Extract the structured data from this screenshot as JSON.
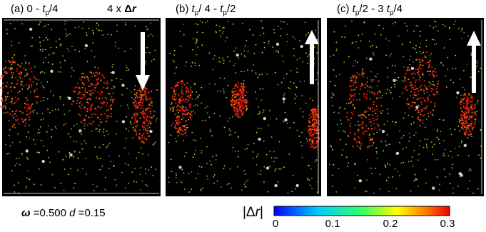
{
  "panels": [
    {
      "title": [
        "(a)  0 - ",
        "t",
        "p",
        "/4"
      ],
      "scale": [
        "4 x ",
        "Δ",
        "r"
      ]
    },
    {
      "title": [
        "(b) ",
        "t",
        "p",
        "/ 4 - ",
        "t",
        "p",
        "/2"
      ]
    },
    {
      "title": [
        "(c) ",
        "t",
        "p",
        "/2 - 3 ",
        "t",
        "p",
        "/4"
      ]
    }
  ],
  "parameters": [
    "ω",
    " =0.500  ",
    "d",
    " =0.15"
  ],
  "colorbar": {
    "label": [
      "|Δ",
      "r",
      "|"
    ],
    "ticks": [
      "0",
      "0.1",
      "0.2",
      "0.3"
    ]
  }
}
